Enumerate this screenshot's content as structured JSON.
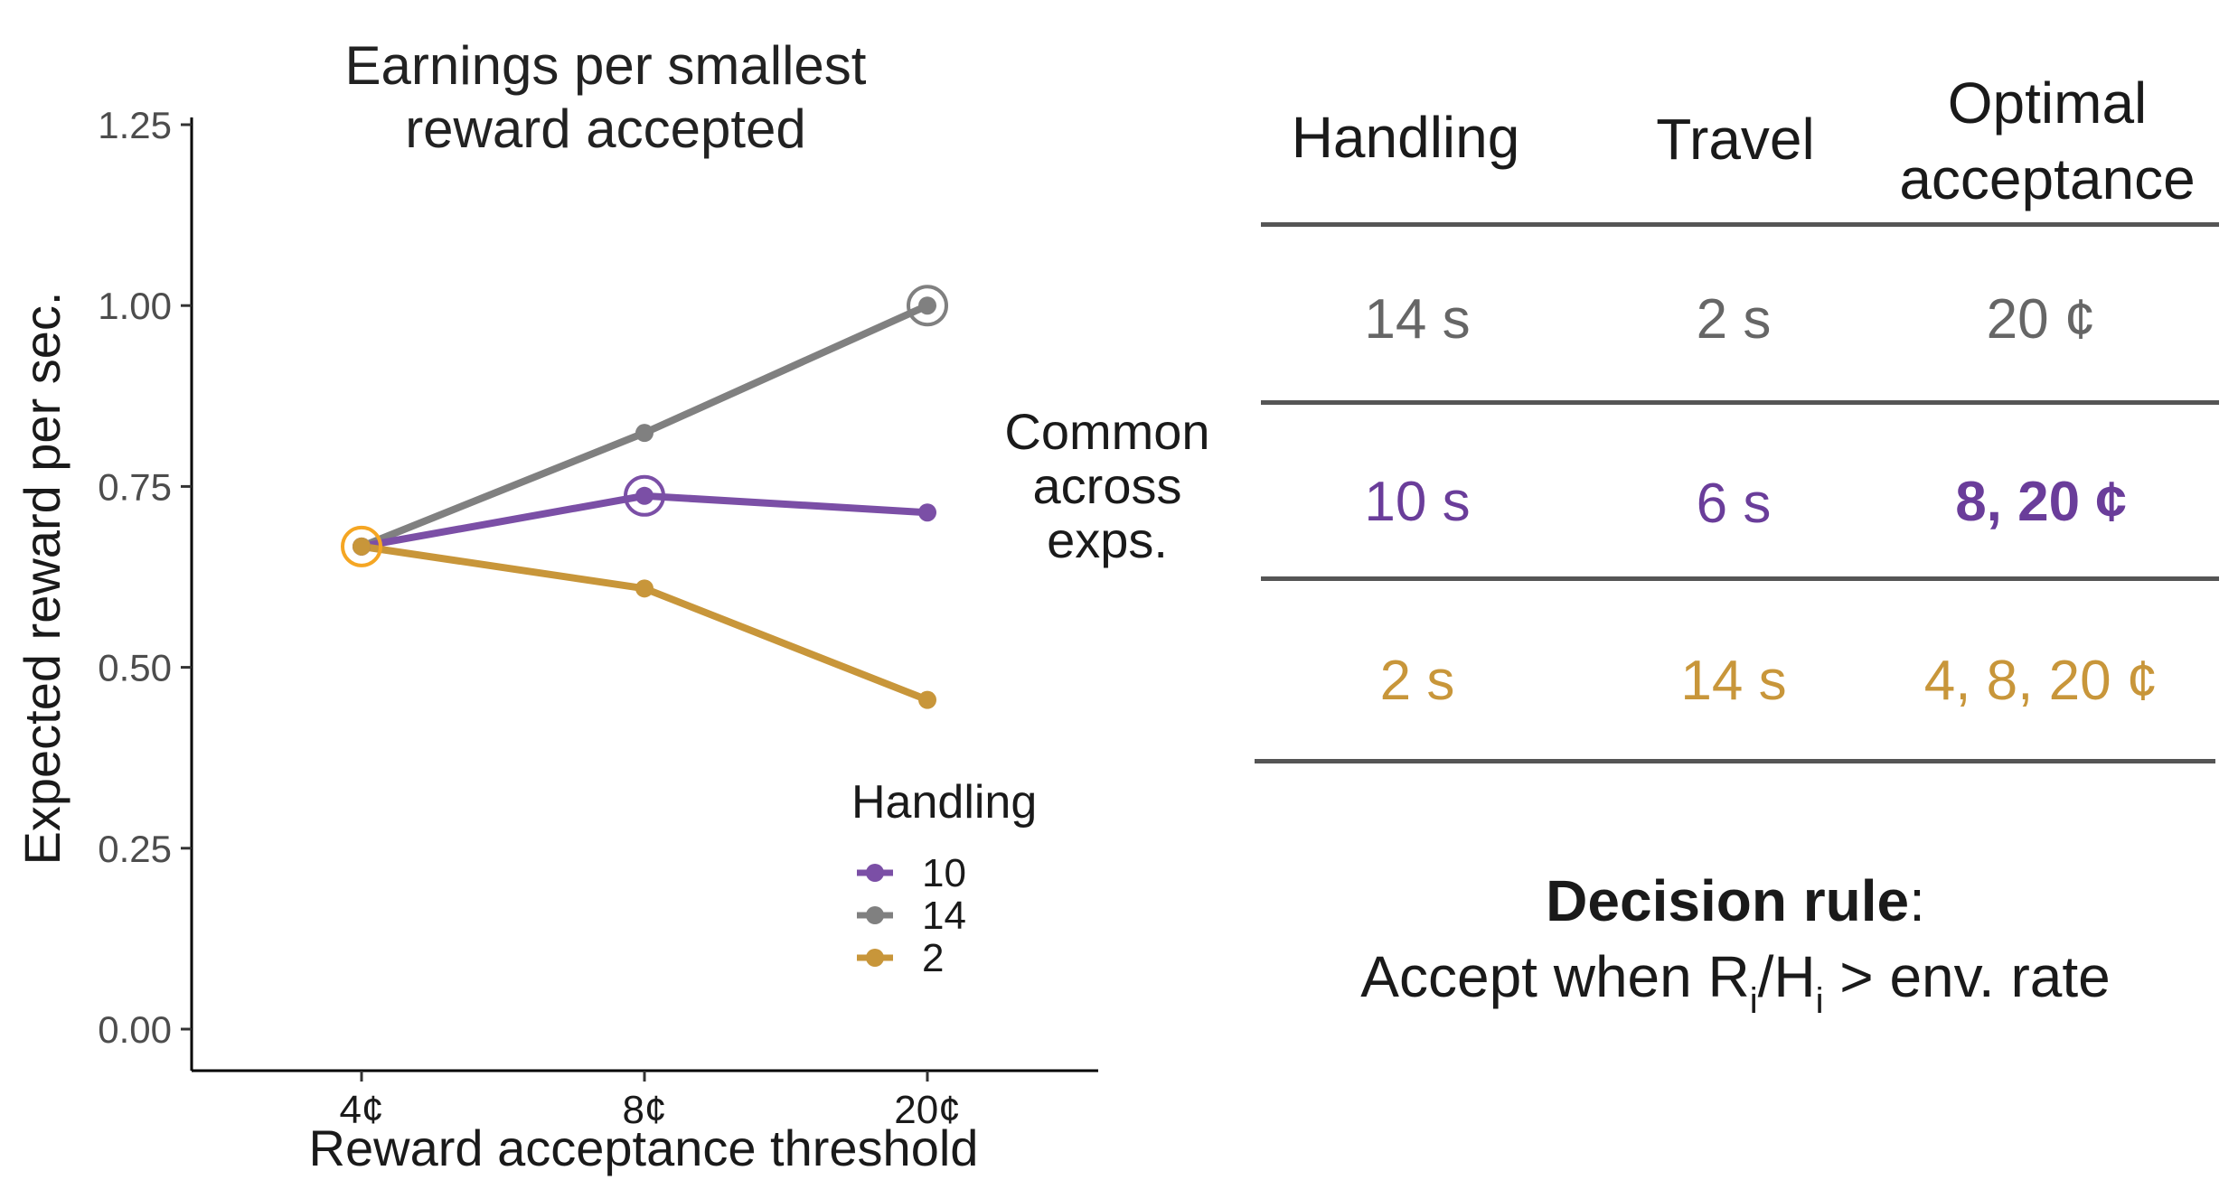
{
  "chart_data": {
    "type": "line",
    "title": "Earnings per smallest reward accepted",
    "title_lines": [
      "Earnings per smallest",
      "reward accepted"
    ],
    "xlabel": "Reward acceptance threshold",
    "ylabel": "Expected reward per sec.",
    "categories": [
      "4¢",
      "8¢",
      "20¢"
    ],
    "ylim": [
      0,
      1.25
    ],
    "yticks": [
      "0.00",
      "0.25",
      "0.50",
      "0.75",
      "1.00",
      "1.25"
    ],
    "grid": false,
    "legend": {
      "title": "Handling",
      "placement": "bottom-right"
    },
    "series": [
      {
        "name": "10",
        "color": "#7b4fa6",
        "values": [
          0.667,
          0.737,
          0.714
        ],
        "optimal_index": 1
      },
      {
        "name": "14",
        "color": "#808080",
        "values": [
          0.667,
          0.824,
          1.0
        ],
        "optimal_index": 2
      },
      {
        "name": "2",
        "color": "#c8963a",
        "values": [
          0.667,
          0.609,
          0.455
        ],
        "optimal_index": 0,
        "optimal_color": "#f5a623"
      }
    ]
  },
  "annotation": {
    "lines": [
      "Common",
      "across",
      "exps."
    ],
    "color": "#6a3d9a"
  },
  "table": {
    "headers": {
      "handling": "Handling",
      "travel": "Travel",
      "optimal_line1": "Optimal",
      "optimal_line2": "acceptance"
    },
    "rows": [
      {
        "handling": "14 s",
        "travel": "2 s",
        "optimal": "20 ¢",
        "color": "#666666",
        "bold_optimal": false
      },
      {
        "handling": "10 s",
        "travel": "6 s",
        "optimal": "8, 20 ¢",
        "color": "#6a3d9a",
        "bold_optimal": true
      },
      {
        "handling": "2 s",
        "travel": "14 s",
        "optimal": "4, 8, 20 ¢",
        "color": "#c8963a",
        "bold_optimal": false
      }
    ]
  },
  "decision": {
    "bold": "Decision rule",
    "colon": ":",
    "prefix": "Accept when R",
    "sub1": "i",
    "slash": "/H",
    "sub2": "i",
    "suffix": " > env. rate"
  }
}
